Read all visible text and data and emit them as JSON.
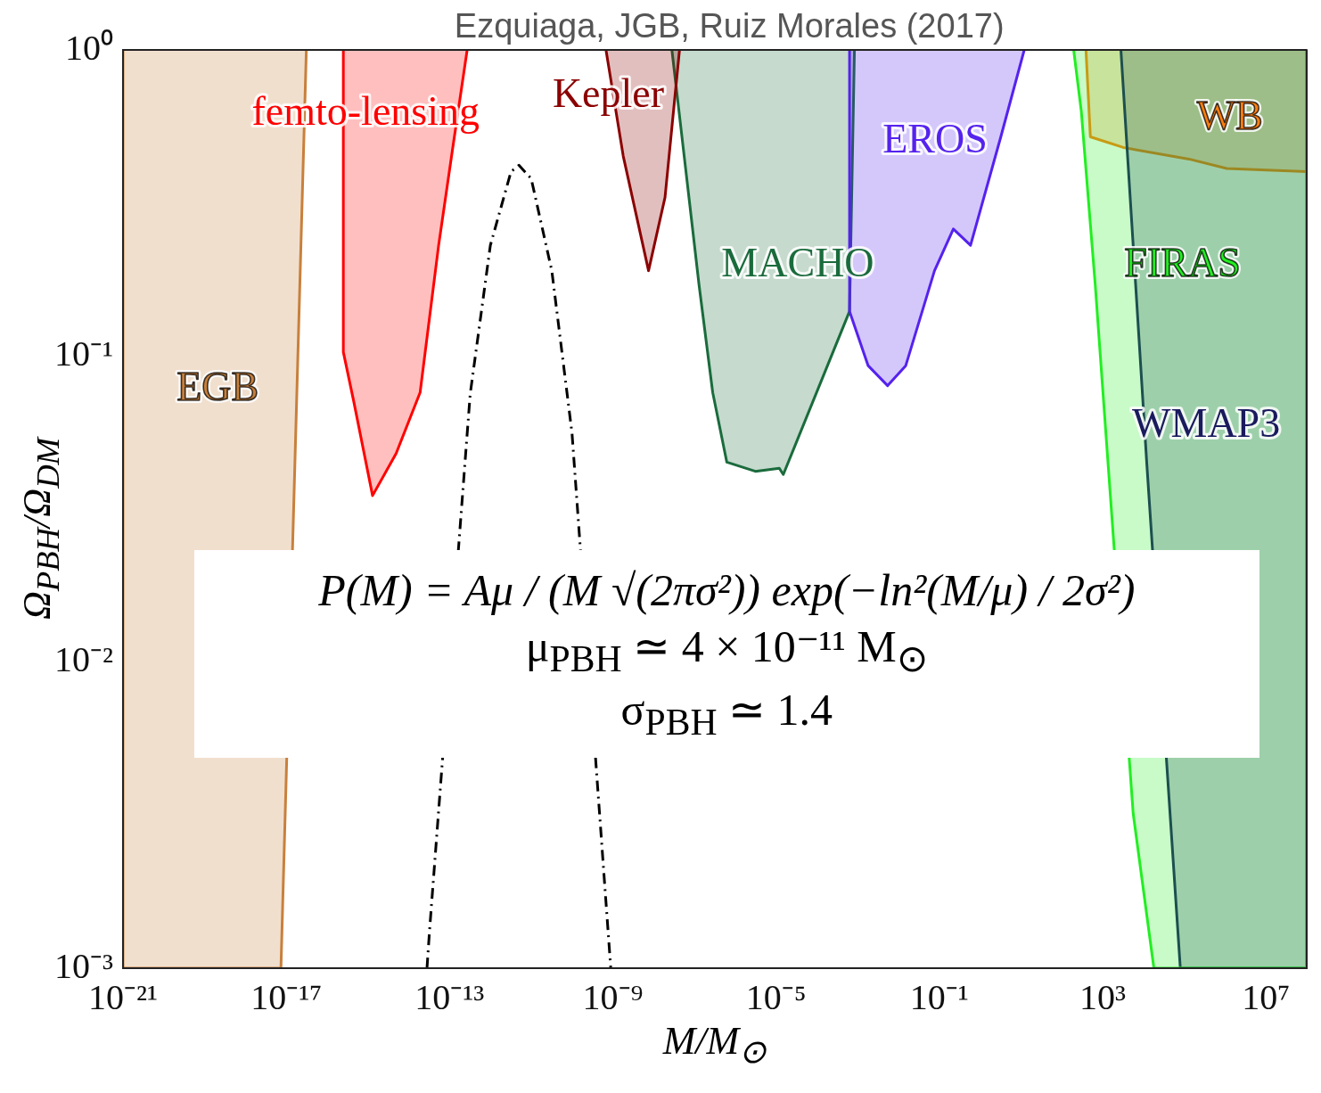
{
  "chart_data": {
    "type": "area",
    "title": "Ezquiaga, JGB, Ruiz Morales (2017)",
    "xlabel": "M/M$_{⊙}$",
    "ylabel": "Ω$_{PBH}$/Ω$_{DM}$",
    "log": "xy",
    "grid": false,
    "legend": false,
    "xlim": [
      1e-21,
      100000000.0
    ],
    "ylim": [
      0.001,
      1
    ],
    "xticks": [
      {
        "value": 1e-21,
        "label": "10⁻²¹"
      },
      {
        "value": 1e-17,
        "label": "10⁻¹⁷"
      },
      {
        "value": 1e-13,
        "label": "10⁻¹³"
      },
      {
        "value": 1e-09,
        "label": "10⁻⁹"
      },
      {
        "value": 1e-05,
        "label": "10⁻⁵"
      },
      {
        "value": 0.1,
        "label": "10⁻¹"
      },
      {
        "value": 1000,
        "label": "10³"
      },
      {
        "value": 10000000,
        "label": "10⁷"
      }
    ],
    "yticks": [
      {
        "value": 0.001,
        "label": "10⁻³"
      },
      {
        "value": 0.01,
        "label": "10⁻²"
      },
      {
        "value": 0.1,
        "label": "10⁻¹"
      },
      {
        "value": 1,
        "label": "10⁰"
      }
    ],
    "annotations": [
      "P(M) = Aμ / (M √(2πσ²)) exp(−ln²(M/μ) / 2σ²)",
      "μ$_{PBH}$ ≃ 4 × 10⁻¹¹ M$_{⊙}$",
      "σ$_{PBH}$ ≃ 1.4"
    ],
    "series": [
      {
        "name": "EGB",
        "color": "#c8803c",
        "x": [
          1e-21,
          1e-21,
          7.4e-18,
          3.1e-17
        ],
        "values": [
          1,
          0.001,
          0.001,
          1
        ]
      },
      {
        "name": "femto-lensing",
        "color": "#ff0000",
        "x": [
          2.5e-16,
          2.5e-16,
          4.5e-16,
          1.3e-15,
          4.9e-15,
          1.9e-14,
          5.4e-14,
          1.2e-13,
          2.7e-13
        ],
        "values": [
          1,
          0.103,
          0.071,
          0.035,
          0.048,
          0.076,
          0.23,
          0.48,
          1
        ]
      },
      {
        "name": "Kepler",
        "color": "#8b0000",
        "x": [
          6.8e-10,
          1.8e-09,
          7.5e-09,
          1.9e-08,
          4.3e-08
        ],
        "values": [
          1,
          0.45,
          0.19,
          0.33,
          1
        ]
      },
      {
        "name": "EROS",
        "color": "#5522ee",
        "x": [
          0.00063,
          0.00063,
          0.0018,
          0.0054,
          0.015,
          0.076,
          0.22,
          0.58,
          3.2,
          12
        ],
        "values": [
          1,
          0.14,
          0.093,
          0.08,
          0.093,
          0.19,
          0.26,
          0.23,
          0.52,
          1
        ]
      },
      {
        "name": "MACHO",
        "color": "#1a6b3c",
        "x": [
          2.8e-08,
          5.6e-08,
          1.3e-07,
          2.8e-07,
          6.2e-07,
          3.1e-06,
          1.2e-05,
          1.5e-05,
          0.00063,
          0.00083
        ],
        "values": [
          1,
          0.45,
          0.17,
          0.076,
          0.045,
          0.042,
          0.043,
          0.041,
          0.14,
          1
        ]
      },
      {
        "name": "FIRAS",
        "color": "#22ee22",
        "x": [
          195,
          300,
          660,
          5600,
          18000,
          100000000,
          100000000
        ],
        "values": [
          1,
          0.63,
          0.17,
          0.0032,
          0.001,
          0.001,
          1
        ]
      },
      {
        "name": "WMAP3",
        "color": "#1a1a5e",
        "x": [
          2800,
          5600,
          12000,
          80000,
          100000000,
          100000000
        ],
        "values": [
          1,
          0.23,
          0.045,
          0.001,
          0.001,
          1
        ]
      },
      {
        "name": "WB",
        "color": "#ff7f0e",
        "x": [
          390,
          500,
          3200,
          130000,
          1100000,
          100000000,
          100000000
        ],
        "values": [
          1,
          0.52,
          0.48,
          0.44,
          0.41,
          0.4,
          1
        ]
      },
      {
        "type": "line",
        "color": "#000000",
        "line_style": "dashed",
        "x": [
          2.8e-14,
          3.2e-14,
          3.2e-13,
          1e-12,
          3.2e-12,
          5e-12,
          1e-11,
          3.2e-11,
          1e-10,
          8.9e-10
        ],
        "values": [
          0.001,
          0.0013,
          0.075,
          0.23,
          0.4,
          0.42,
          0.38,
          0.19,
          0.056,
          0.001
        ]
      }
    ]
  }
}
